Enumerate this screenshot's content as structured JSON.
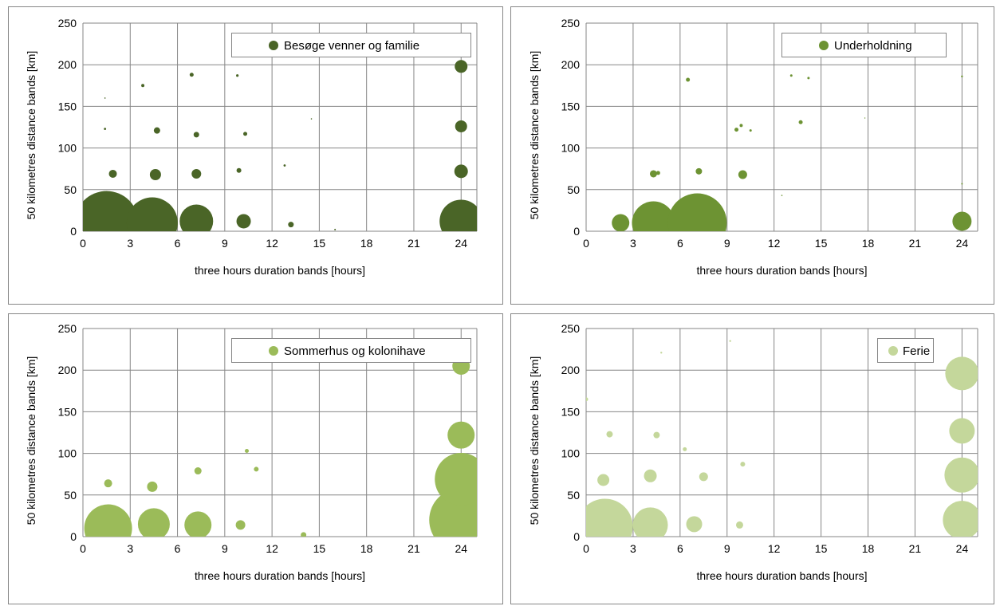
{
  "chart_data": [
    {
      "type": "scatter",
      "title": "",
      "xlabel": "three hours duration bands [hours]",
      "ylabel": "50 kilometres distance bands [km]",
      "xlim": [
        0,
        25
      ],
      "ylim": [
        0,
        250
      ],
      "xticks": [
        0,
        3,
        6,
        9,
        12,
        15,
        18,
        21,
        24
      ],
      "yticks": [
        0,
        50,
        100,
        150,
        200,
        250
      ],
      "grid": true,
      "legend": "top-right",
      "series": [
        {
          "name": "Besøge venner og familie",
          "color": "#4a6527",
          "points": [
            {
              "x": 1.5,
              "y": 10,
              "size": 40
            },
            {
              "x": 4.4,
              "y": 10,
              "size": 32
            },
            {
              "x": 7.2,
              "y": 12,
              "size": 21
            },
            {
              "x": 10.2,
              "y": 12,
              "size": 9
            },
            {
              "x": 13.2,
              "y": 8,
              "size": 3.5
            },
            {
              "x": 16.0,
              "y": 2,
              "size": 1
            },
            {
              "x": 24,
              "y": 12,
              "size": 27
            },
            {
              "x": 24,
              "y": 72,
              "size": 8.5
            },
            {
              "x": 24,
              "y": 126,
              "size": 7.5
            },
            {
              "x": 24,
              "y": 198,
              "size": 8
            },
            {
              "x": 1.9,
              "y": 69,
              "size": 5
            },
            {
              "x": 4.6,
              "y": 68,
              "size": 7
            },
            {
              "x": 7.2,
              "y": 69,
              "size": 6
            },
            {
              "x": 9.9,
              "y": 73,
              "size": 3
            },
            {
              "x": 12.8,
              "y": 79,
              "size": 1.4
            },
            {
              "x": 1.4,
              "y": 123,
              "size": 1.4
            },
            {
              "x": 4.7,
              "y": 121,
              "size": 4
            },
            {
              "x": 7.2,
              "y": 116,
              "size": 3.5
            },
            {
              "x": 10.3,
              "y": 117,
              "size": 2.5
            },
            {
              "x": 14.5,
              "y": 135,
              "size": 0.8
            },
            {
              "x": 1.4,
              "y": 160,
              "size": 0.8
            },
            {
              "x": 3.8,
              "y": 175,
              "size": 2
            },
            {
              "x": 6.9,
              "y": 188,
              "size": 2.5
            },
            {
              "x": 9.8,
              "y": 187,
              "size": 1.6
            }
          ]
        }
      ]
    },
    {
      "type": "scatter",
      "title": "",
      "xlabel": "three hours duration bands [hours]",
      "ylabel": "50 kilometres distance bands [km]",
      "xlim": [
        0,
        25
      ],
      "ylim": [
        0,
        250
      ],
      "xticks": [
        0,
        3,
        6,
        9,
        12,
        15,
        18,
        21,
        24
      ],
      "yticks": [
        0,
        50,
        100,
        150,
        200,
        250
      ],
      "grid": true,
      "legend": "top-right",
      "series": [
        {
          "name": "Underholdning",
          "color": "#6d9333",
          "points": [
            {
              "x": 2.2,
              "y": 10,
              "size": 11
            },
            {
              "x": 4.3,
              "y": 10,
              "size": 27
            },
            {
              "x": 7.1,
              "y": 10,
              "size": 37
            },
            {
              "x": 24,
              "y": 12,
              "size": 12
            },
            {
              "x": 4.3,
              "y": 69,
              "size": 4.5
            },
            {
              "x": 4.6,
              "y": 70,
              "size": 2.5
            },
            {
              "x": 7.2,
              "y": 72,
              "size": 4
            },
            {
              "x": 10.0,
              "y": 68,
              "size": 5.5
            },
            {
              "x": 12.5,
              "y": 43,
              "size": 0.8
            },
            {
              "x": 24,
              "y": 57,
              "size": 1
            },
            {
              "x": 9.6,
              "y": 122,
              "size": 2.5
            },
            {
              "x": 9.9,
              "y": 127,
              "size": 2
            },
            {
              "x": 10.5,
              "y": 121,
              "size": 1.5
            },
            {
              "x": 13.7,
              "y": 131,
              "size": 2.5
            },
            {
              "x": 17.8,
              "y": 136,
              "size": 0.7
            },
            {
              "x": 6.5,
              "y": 182,
              "size": 2.5
            },
            {
              "x": 13.1,
              "y": 187,
              "size": 1.5
            },
            {
              "x": 14.2,
              "y": 184,
              "size": 1.5
            },
            {
              "x": 24,
              "y": 186,
              "size": 1.2
            }
          ]
        }
      ]
    },
    {
      "type": "scatter",
      "title": "",
      "xlabel": "three hours duration bands [hours]",
      "ylabel": "50 kilometres distance bands [km]",
      "xlim": [
        0,
        25
      ],
      "ylim": [
        0,
        250
      ],
      "xticks": [
        0,
        3,
        6,
        9,
        12,
        15,
        18,
        21,
        24
      ],
      "yticks": [
        0,
        50,
        100,
        150,
        200,
        250
      ],
      "grid": true,
      "legend": "top-right",
      "series": [
        {
          "name": "Sommerhus og kolonihave",
          "color": "#9bbb59",
          "points": [
            {
              "x": 1.6,
              "y": 10,
              "size": 30
            },
            {
              "x": 4.5,
              "y": 15,
              "size": 20
            },
            {
              "x": 7.3,
              "y": 14,
              "size": 17
            },
            {
              "x": 10.0,
              "y": 14,
              "size": 6
            },
            {
              "x": 14.0,
              "y": 2,
              "size": 3.5
            },
            {
              "x": 24,
              "y": 20,
              "size": 40
            },
            {
              "x": 24,
              "y": 69,
              "size": 33
            },
            {
              "x": 24,
              "y": 122,
              "size": 17
            },
            {
              "x": 24,
              "y": 205,
              "size": 11
            },
            {
              "x": 1.6,
              "y": 64,
              "size": 5
            },
            {
              "x": 4.4,
              "y": 60,
              "size": 6.5
            },
            {
              "x": 7.3,
              "y": 79,
              "size": 4.5
            },
            {
              "x": 10.4,
              "y": 103,
              "size": 2.5
            },
            {
              "x": 11.0,
              "y": 81,
              "size": 3
            }
          ]
        }
      ]
    },
    {
      "type": "scatter",
      "title": "",
      "xlabel": "three hours duration bands [hours]",
      "ylabel": "50 kilometres distance bands [km]",
      "xlim": [
        0,
        25
      ],
      "ylim": [
        0,
        250
      ],
      "xticks": [
        0,
        3,
        6,
        9,
        12,
        15,
        18,
        21,
        24
      ],
      "yticks": [
        0,
        50,
        100,
        150,
        200,
        250
      ],
      "grid": true,
      "legend": "top-right",
      "series": [
        {
          "name": "Ferie",
          "color": "#c4d79b",
          "points": [
            {
              "x": 1.2,
              "y": 12,
              "size": 35
            },
            {
              "x": 4.1,
              "y": 14,
              "size": 22
            },
            {
              "x": 6.9,
              "y": 15,
              "size": 10
            },
            {
              "x": 9.8,
              "y": 14,
              "size": 4.5
            },
            {
              "x": 1.1,
              "y": 68,
              "size": 7.5
            },
            {
              "x": 4.1,
              "y": 73,
              "size": 8
            },
            {
              "x": 7.5,
              "y": 72,
              "size": 5.5
            },
            {
              "x": 10.0,
              "y": 87,
              "size": 3
            },
            {
              "x": 0,
              "y": 165,
              "size": 2.5
            },
            {
              "x": 1.5,
              "y": 123,
              "size": 4
            },
            {
              "x": 4.5,
              "y": 122,
              "size": 4
            },
            {
              "x": 6.3,
              "y": 105,
              "size": 2.5
            },
            {
              "x": 4.8,
              "y": 221,
              "size": 1.2
            },
            {
              "x": 9.2,
              "y": 235,
              "size": 1.2
            },
            {
              "x": 24,
              "y": 20,
              "size": 24
            },
            {
              "x": 24,
              "y": 74,
              "size": 22
            },
            {
              "x": 24,
              "y": 127,
              "size": 16
            },
            {
              "x": 24,
              "y": 196,
              "size": 21
            }
          ]
        }
      ]
    }
  ]
}
